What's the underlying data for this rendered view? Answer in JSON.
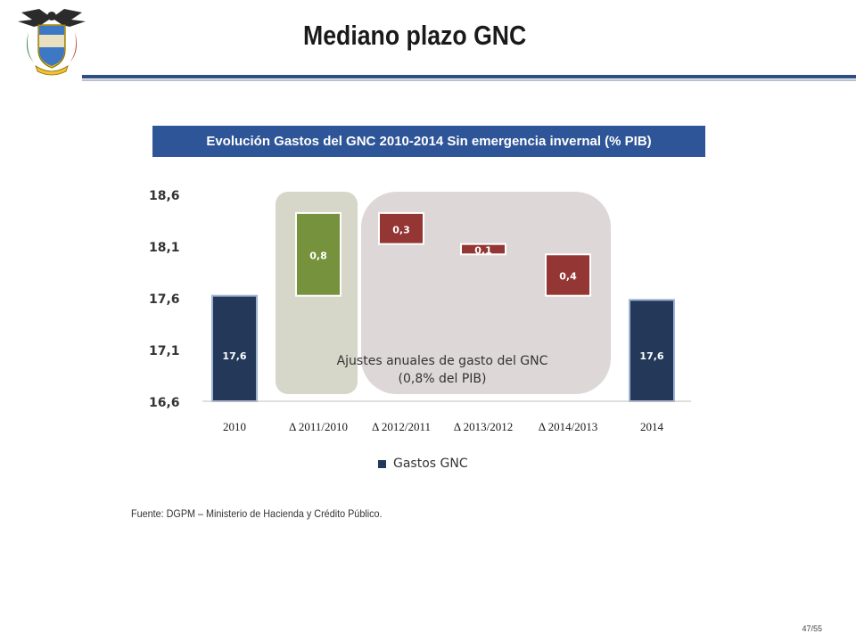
{
  "header": {
    "title": "Mediano plazo GNC",
    "emblem_icon": "colombia-coat-of-arms-icon"
  },
  "chart_banner": "Evolución Gastos del GNC 2010-2014 Sin emergencia invernal (% PIB)",
  "annotation": {
    "line1": "Ajustes anuales de gasto del GNC",
    "line2": "(0,8% del PIB)"
  },
  "legend": {
    "label": "Gastos GNC"
  },
  "source": "Fuente: DGPM – Ministerio de Hacienda y Crédito Público.",
  "page_number": "47/55",
  "colors": {
    "total": "#24395a",
    "increase": "#76923c",
    "decrease": "#943634",
    "panel": "#ddd7d7",
    "panel_small": "#d6d6c9",
    "banner": "#2e5597"
  },
  "chart_data": {
    "type": "bar",
    "subtype": "waterfall",
    "categories": [
      "2010",
      "Δ 2011/2010",
      "Δ 2012/2011",
      "Δ 2013/2012",
      "Δ 2014/2013",
      "2014"
    ],
    "bars": [
      {
        "kind": "total",
        "base": 16.6,
        "top": 17.62,
        "label": "17,6"
      },
      {
        "kind": "increase",
        "base": 17.62,
        "top": 18.42,
        "label": "0,8"
      },
      {
        "kind": "decrease",
        "base": 18.12,
        "top": 18.42,
        "label": "0,3"
      },
      {
        "kind": "decrease",
        "base": 18.02,
        "top": 18.12,
        "label": "0,1"
      },
      {
        "kind": "decrease",
        "base": 17.62,
        "top": 18.02,
        "label": "0,4"
      },
      {
        "kind": "total",
        "base": 16.6,
        "top": 17.58,
        "label": "17,6"
      }
    ],
    "yticks": [
      "16,6",
      "17,1",
      "17,6",
      "18,1",
      "18,6"
    ],
    "ylim": [
      16.6,
      18.6
    ],
    "series": [
      {
        "name": "Gastos GNC"
      }
    ],
    "legend_position": "bottom",
    "grid": false
  }
}
